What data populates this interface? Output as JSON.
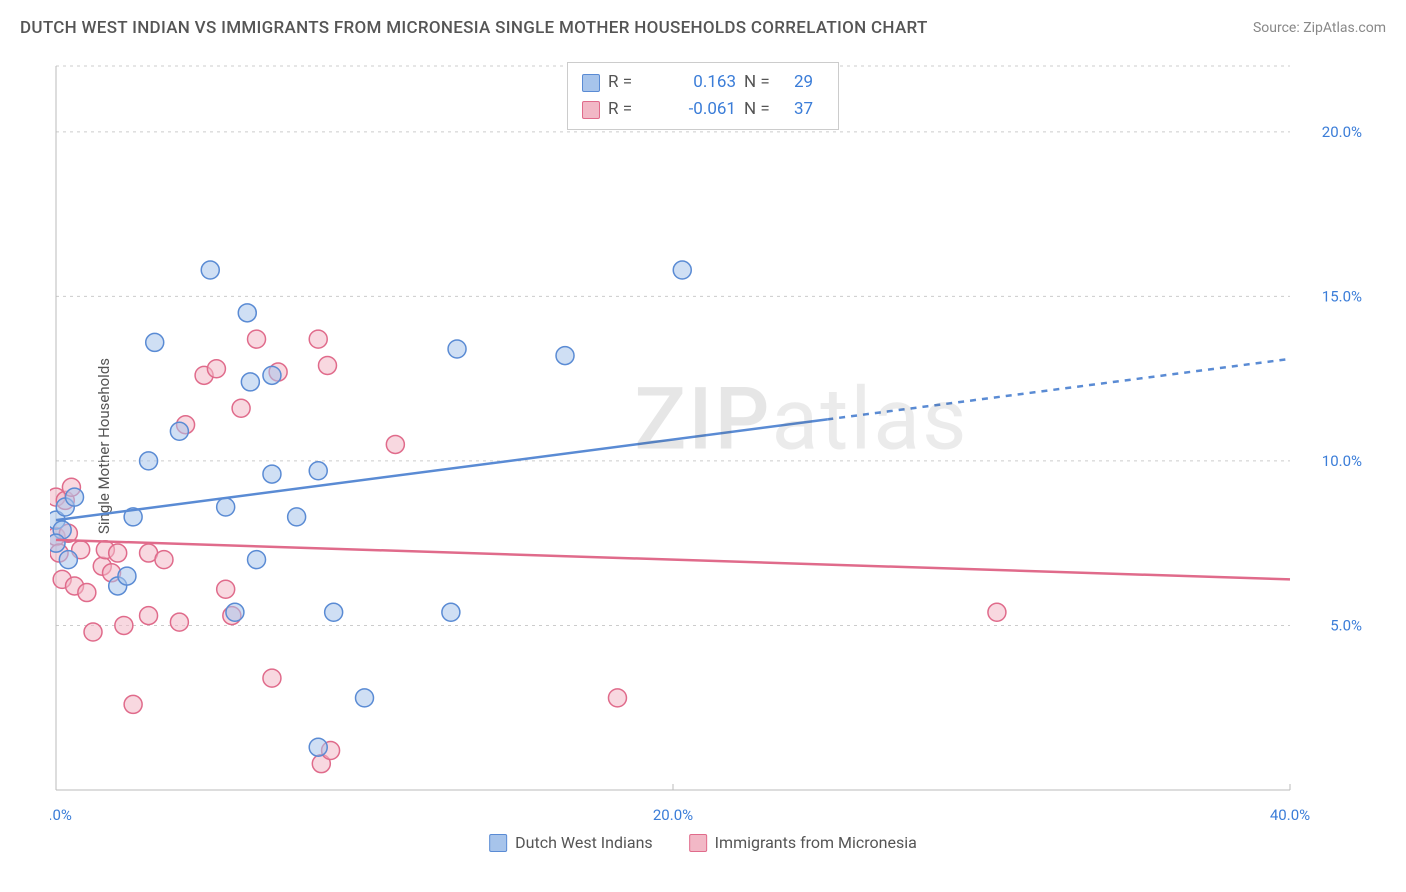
{
  "title": "DUTCH WEST INDIAN VS IMMIGRANTS FROM MICRONESIA SINGLE MOTHER HOUSEHOLDS CORRELATION CHART",
  "source": "Source: ZipAtlas.com",
  "y_axis_label": "Single Mother Households",
  "watermark": {
    "prefix": "ZIP",
    "suffix": "atlas"
  },
  "chart": {
    "type": "scatter",
    "xlim": [
      0,
      40
    ],
    "ylim": [
      0,
      22
    ],
    "x_ticks": [
      0,
      20,
      40
    ],
    "x_tick_labels": [
      "0.0%",
      "20.0%",
      "40.0%"
    ],
    "y_ticks": [
      5,
      10,
      15,
      20
    ],
    "y_tick_labels": [
      "5.0%",
      "10.0%",
      "15.0%",
      "20.0%"
    ],
    "background_color": "#ffffff",
    "grid_color": "#cccccc",
    "marker_radius": 9,
    "marker_opacity": 0.55,
    "series": [
      {
        "id": "dutch",
        "label": "Dutch West Indians",
        "color_fill": "#a7c4eb",
        "color_stroke": "#5a8bd4",
        "r": 0.163,
        "n": 29,
        "trend": {
          "y_at_x0": 8.2,
          "y_at_x40": 13.1,
          "solid_until_x": 25
        },
        "points": [
          [
            0.0,
            8.2
          ],
          [
            0.2,
            7.9
          ],
          [
            0.0,
            7.5
          ],
          [
            0.4,
            7.0
          ],
          [
            0.3,
            8.6
          ],
          [
            2.0,
            6.2
          ],
          [
            2.3,
            6.5
          ],
          [
            2.5,
            8.3
          ],
          [
            3.0,
            10.0
          ],
          [
            3.2,
            13.6
          ],
          [
            4.0,
            10.9
          ],
          [
            5.0,
            15.8
          ],
          [
            5.5,
            8.6
          ],
          [
            5.8,
            5.4
          ],
          [
            6.2,
            14.5
          ],
          [
            6.3,
            12.4
          ],
          [
            6.5,
            7.0
          ],
          [
            7.0,
            12.6
          ],
          [
            7.0,
            9.6
          ],
          [
            7.8,
            8.3
          ],
          [
            8.5,
            9.7
          ],
          [
            8.5,
            1.3
          ],
          [
            9.0,
            5.4
          ],
          [
            12.8,
            5.4
          ],
          [
            13.0,
            13.4
          ],
          [
            16.5,
            13.2
          ],
          [
            20.3,
            15.8
          ],
          [
            10.0,
            2.8
          ],
          [
            0.6,
            8.9
          ]
        ]
      },
      {
        "id": "micronesia",
        "label": "Immigrants from Micronesia",
        "color_fill": "#f2b8c6",
        "color_stroke": "#e06b8b",
        "r": -0.061,
        "n": 37,
        "trend": {
          "y_at_x0": 7.6,
          "y_at_x40": 6.4,
          "solid_until_x": 40
        },
        "points": [
          [
            0.0,
            7.7
          ],
          [
            0.0,
            8.9
          ],
          [
            0.1,
            7.2
          ],
          [
            0.2,
            6.4
          ],
          [
            0.3,
            8.8
          ],
          [
            0.5,
            9.2
          ],
          [
            0.6,
            6.2
          ],
          [
            0.8,
            7.3
          ],
          [
            1.0,
            6.0
          ],
          [
            1.2,
            4.8
          ],
          [
            1.5,
            6.8
          ],
          [
            1.6,
            7.3
          ],
          [
            2.0,
            7.2
          ],
          [
            2.2,
            5.0
          ],
          [
            2.5,
            2.6
          ],
          [
            3.0,
            5.3
          ],
          [
            3.0,
            7.2
          ],
          [
            3.5,
            7.0
          ],
          [
            4.0,
            5.1
          ],
          [
            4.2,
            11.1
          ],
          [
            4.8,
            12.6
          ],
          [
            5.2,
            12.8
          ],
          [
            5.5,
            6.1
          ],
          [
            5.7,
            5.3
          ],
          [
            6.0,
            11.6
          ],
          [
            6.5,
            13.7
          ],
          [
            7.0,
            3.4
          ],
          [
            7.2,
            12.7
          ],
          [
            8.5,
            13.7
          ],
          [
            8.6,
            0.8
          ],
          [
            8.8,
            12.9
          ],
          [
            8.9,
            1.2
          ],
          [
            11.0,
            10.5
          ],
          [
            18.2,
            2.8
          ],
          [
            30.5,
            5.4
          ],
          [
            0.4,
            7.8
          ],
          [
            1.8,
            6.6
          ]
        ]
      }
    ]
  },
  "legend_top": {
    "r_label": "R  =",
    "n_label": "N  ="
  }
}
